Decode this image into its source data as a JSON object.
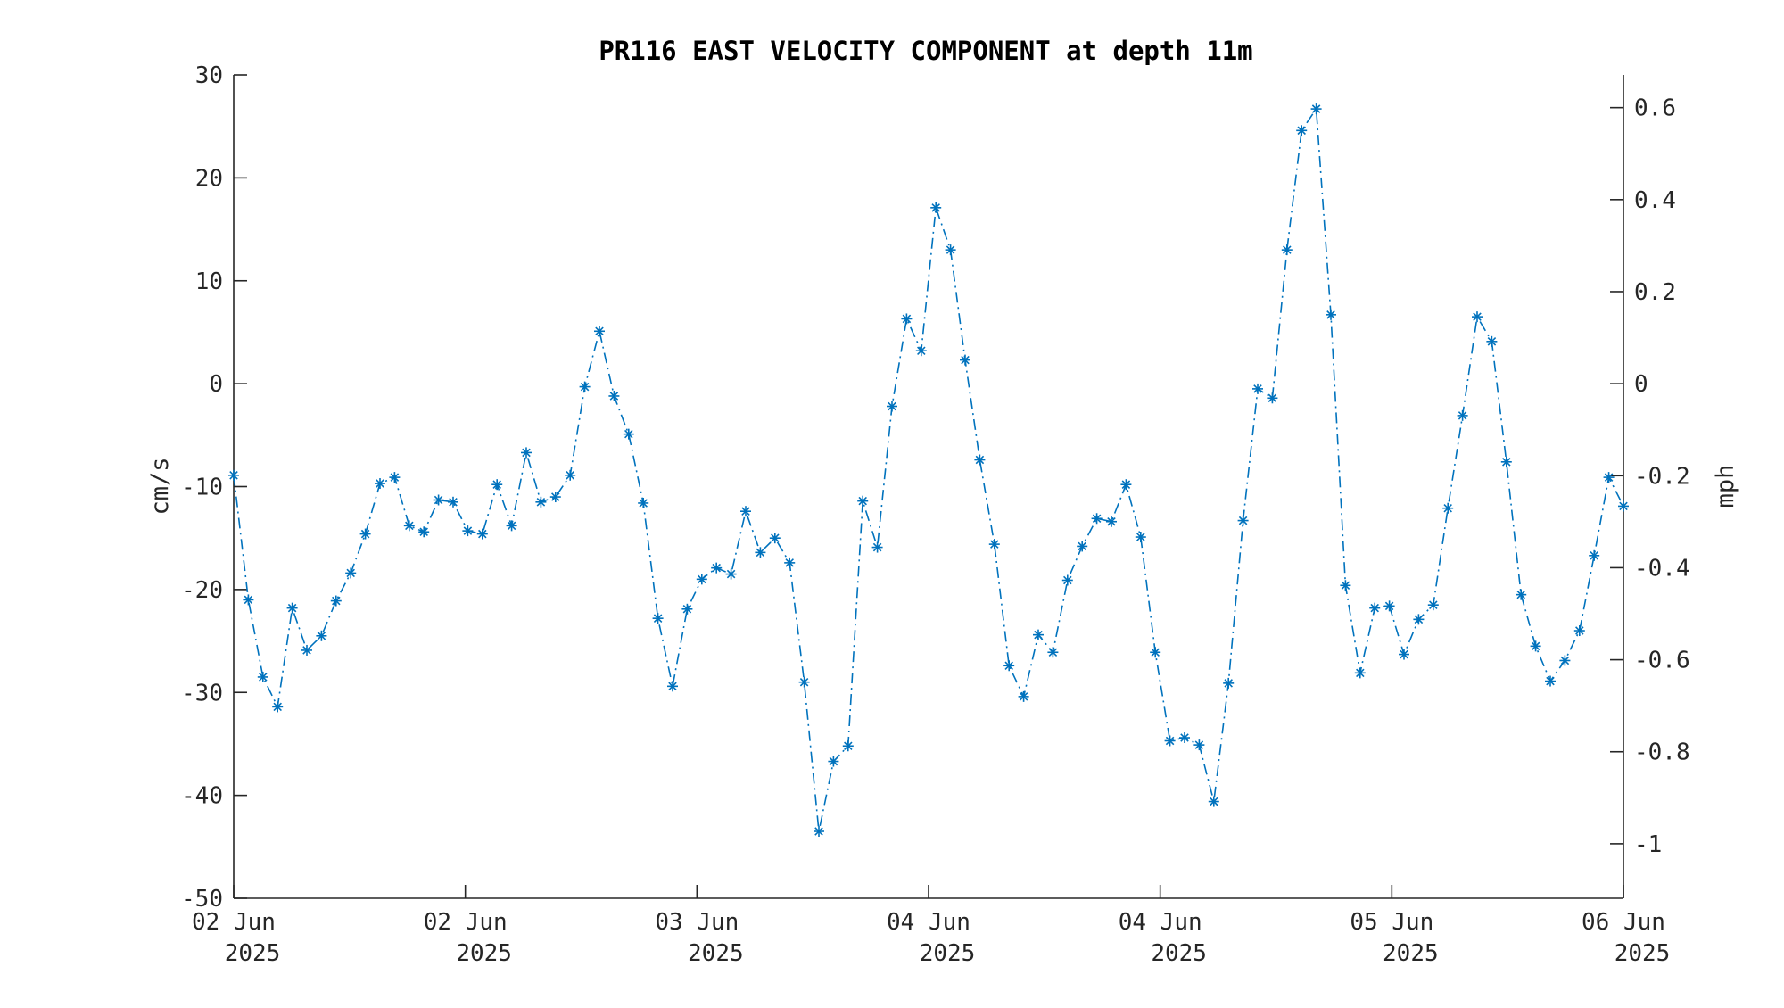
{
  "chart_data": {
    "type": "line",
    "title": "PR116 EAST VELOCITY COMPONENT at depth 11m",
    "xlabel": "",
    "ylabel": "cm/s",
    "ylabel_right": "mph",
    "ylim": [
      -50,
      30
    ],
    "yticks": [
      "30",
      "20",
      "10",
      "0",
      "-10",
      "-20",
      "-30",
      "-40",
      "-50"
    ],
    "yticks_right": [
      "0.6",
      "0.4",
      "0.2",
      "0",
      "-0.2",
      "-0.4",
      "-0.6",
      "-0.8",
      "-1"
    ],
    "xticks": [
      {
        "day": "02 Jun",
        "year": "2025"
      },
      {
        "day": "02 Jun",
        "year": "2025"
      },
      {
        "day": "03 Jun",
        "year": "2025"
      },
      {
        "day": "04 Jun",
        "year": "2025"
      },
      {
        "day": "04 Jun",
        "year": "2025"
      },
      {
        "day": "05 Jun",
        "year": "2025"
      },
      {
        "day": "06 Jun",
        "year": "2025"
      }
    ],
    "grid": false,
    "legend": false,
    "marker": "asterisk",
    "line_style": "dash-dot",
    "color": "#0072BD",
    "series": [
      {
        "values": [
          -8.9,
          -21.0,
          -28.5,
          -31.4,
          -21.8,
          -25.9,
          -24.5,
          -21.1,
          -18.4,
          -14.6,
          -9.7,
          -9.1,
          -13.8,
          -14.4,
          -11.3,
          -11.5,
          -14.3,
          -14.6,
          -9.8,
          -13.8,
          -6.7,
          -11.5,
          -11.0,
          -8.9,
          -0.3,
          5.1,
          -1.2,
          -4.9,
          -11.6,
          -22.8,
          -29.4,
          -21.9,
          -19.0,
          -17.9,
          -18.5,
          -12.4,
          -16.4,
          -15.0,
          -17.4,
          -29.0,
          -43.5,
          -36.7,
          -35.2,
          -11.4,
          -15.9,
          -2.2,
          6.3,
          3.2,
          17.1,
          13.0,
          2.3,
          -7.4,
          -15.6,
          -27.4,
          -30.4,
          -24.4,
          -26.1,
          -19.1,
          -15.8,
          -13.1,
          -13.4,
          -9.8,
          -14.9,
          -26.1,
          -34.7,
          -34.4,
          -35.1,
          -40.6,
          -29.1,
          -13.3,
          -0.5,
          -1.4,
          13.0,
          24.6,
          26.7,
          6.7,
          -19.6,
          -28.1,
          -21.8,
          -21.6,
          -26.3,
          -22.9,
          -21.5,
          -12.1,
          -3.1,
          6.5,
          4.1,
          -7.6,
          -20.5,
          -25.5,
          -28.9,
          -26.9,
          -24.0,
          -16.7,
          -9.1,
          -11.9
        ]
      }
    ]
  }
}
